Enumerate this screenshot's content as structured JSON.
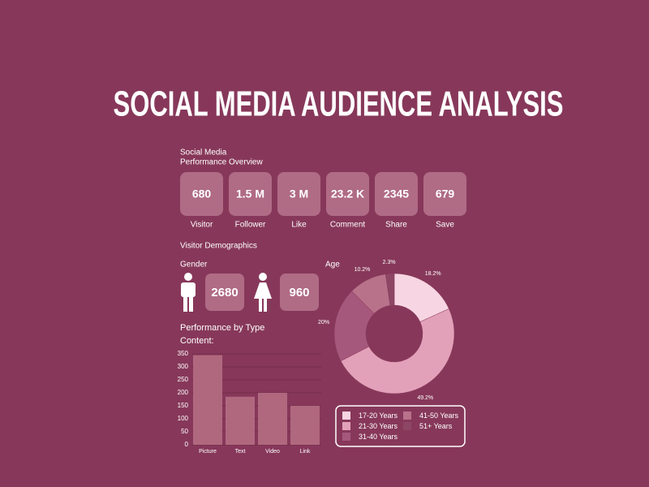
{
  "title": "SOCIAL MEDIA AUDIENCE ANALYSIS",
  "overview": {
    "title_lines": [
      "Social Media",
      "Performance Overview"
    ],
    "metrics": [
      {
        "value": "680",
        "label": "Visitor"
      },
      {
        "value": "1.5 M",
        "label": "Follower"
      },
      {
        "value": "3 M",
        "label": "Like"
      },
      {
        "value": "23.2 K",
        "label": "Comment"
      },
      {
        "value": "2345",
        "label": "Share"
      },
      {
        "value": "679",
        "label": "Save"
      }
    ]
  },
  "demographics": {
    "title": "Visitor Demographics",
    "gender_label": "Gender",
    "male": 2680,
    "female": 960
  },
  "chart_data": [
    {
      "type": "bar",
      "title": "Performance by Type",
      "subtitle": "Content:",
      "categories": [
        "Picture",
        "Text",
        "Video",
        "Link"
      ],
      "values": [
        345,
        185,
        200,
        150
      ],
      "color": "#b0687f",
      "ylim": [
        0,
        350
      ],
      "yticks": [
        0,
        50,
        100,
        150,
        200,
        250,
        300,
        350
      ],
      "grid": true
    },
    {
      "type": "donut",
      "title": "Age",
      "categories": [
        "17-20 Years",
        "21-30 Years",
        "31-40 Years",
        "41-50 Years",
        "51+ Years"
      ],
      "values": [
        18.2,
        49.2,
        20,
        10.2,
        2.3
      ],
      "value_labels": [
        "18.2%",
        "49.2%",
        "20%",
        "10.2%",
        "2.3%"
      ],
      "colors": [
        "#f8d5e2",
        "#e3a1b9",
        "#a5587c",
        "#b8728a",
        "#8d4663"
      ],
      "legend": "bottom"
    }
  ]
}
